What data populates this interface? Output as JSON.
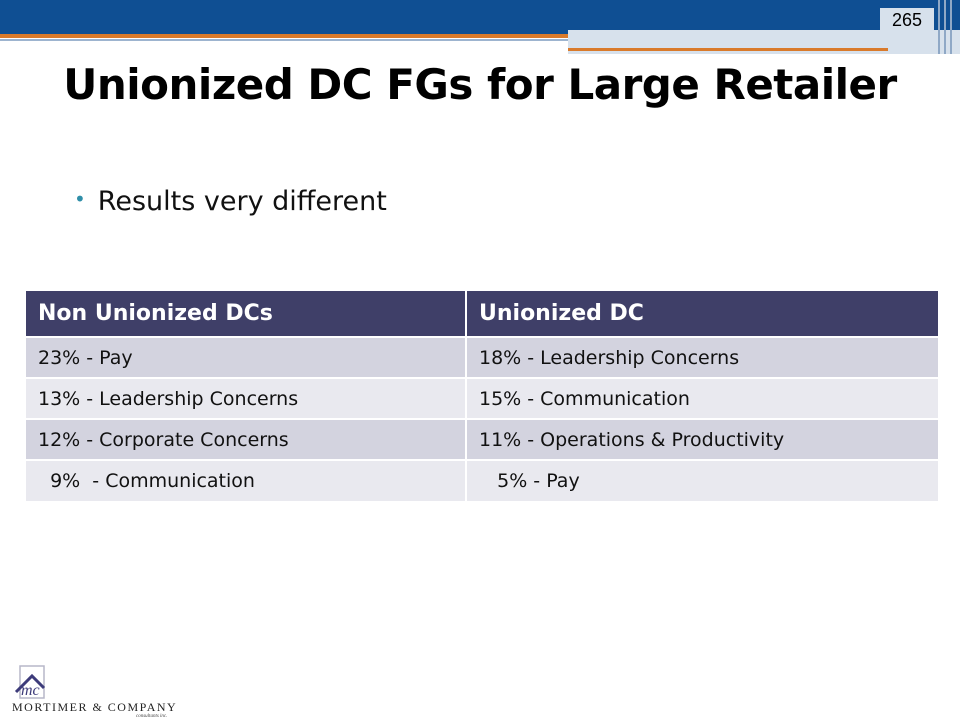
{
  "slide": {
    "page_number": "265",
    "title": "Unionized DC FGs for Large Retailer",
    "bullet": "Results very different"
  },
  "table": {
    "headers": [
      "Non Unionized DCs",
      "Unionized DC"
    ],
    "rows": [
      [
        "23% - Pay",
        "18% - Leadership Concerns"
      ],
      [
        "13% - Leadership Concerns",
        "15% - Communication"
      ],
      [
        "12% - Corporate Concerns",
        "11% - Operations & Productivity"
      ],
      [
        "  9%  - Communication",
        "   5% - Pay"
      ]
    ]
  },
  "logo": {
    "name": "MORTIMER & COMPANY",
    "sub": "consultants inc."
  },
  "colors": {
    "header_bg": "#3f3f68",
    "top_bar": "#0f4f93",
    "accent": "#d97a2b"
  }
}
